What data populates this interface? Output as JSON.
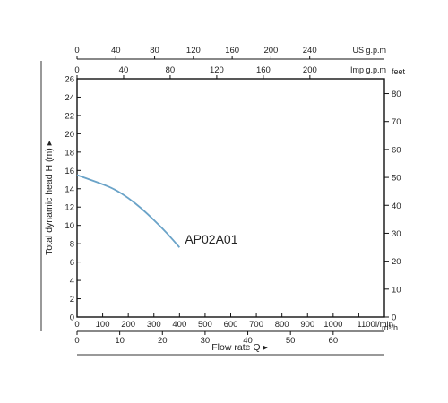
{
  "chart_data": {
    "type": "line",
    "axes": {
      "left": {
        "label": "Total dynamic head H (m)",
        "arrow": "▸",
        "range": [
          0,
          26
        ],
        "ticks": [
          0,
          2,
          4,
          6,
          8,
          10,
          12,
          14,
          16,
          18,
          20,
          22,
          24,
          26
        ]
      },
      "right": {
        "unit": "feet",
        "range": [
          0,
          85.3
        ],
        "ticks": [
          0,
          10,
          20,
          30,
          40,
          50,
          60,
          70,
          80
        ]
      },
      "bottom_lmin": {
        "unit": "l/min",
        "range": [
          0,
          1200
        ],
        "ticks": [
          0,
          100,
          200,
          300,
          400,
          500,
          600,
          700,
          800,
          900,
          1000,
          1100
        ]
      },
      "bottom_m3h": {
        "unit": "m³/h",
        "label": "Flow rate Q",
        "arrow": "▸",
        "range": [
          0,
          72
        ],
        "ticks": [
          0,
          10,
          20,
          30,
          40,
          50,
          60
        ]
      },
      "top_us_gpm": {
        "unit": "US g.p.m",
        "range": [
          0,
          317
        ],
        "ticks": [
          0,
          40,
          80,
          120,
          160,
          200,
          240
        ]
      },
      "top_imp_gpm": {
        "unit": "Imp g.p.m",
        "range": [
          0,
          264
        ],
        "ticks": [
          0,
          40,
          80,
          120,
          160,
          200
        ]
      }
    },
    "series": [
      {
        "name": "AP02A01",
        "color": "#6aa3c8",
        "x_lmin": [
          0,
          50,
          100,
          150,
          200,
          250,
          300,
          350,
          400
        ],
        "y_m": [
          15.5,
          15.0,
          14.5,
          13.9,
          13.0,
          11.9,
          10.6,
          9.2,
          7.6
        ]
      }
    ],
    "grid": false,
    "legend": "none"
  }
}
